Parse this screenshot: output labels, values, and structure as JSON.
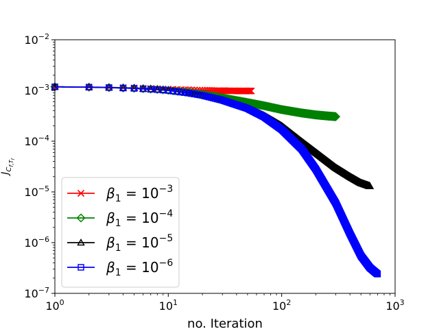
{
  "chart_data": {
    "type": "line",
    "title": "",
    "xlabel": "no. Iteration",
    "ylabel": "J C f,T f",
    "xscale": "log",
    "yscale": "log",
    "xlim": [
      1,
      1000
    ],
    "ylim": [
      1e-07,
      0.01
    ],
    "grid": false,
    "legend_position": "lower-left",
    "x_ticks": [
      {
        "base": "10",
        "exp": "0"
      },
      {
        "base": "10",
        "exp": "1"
      },
      {
        "base": "10",
        "exp": "2"
      },
      {
        "base": "10",
        "exp": "3"
      }
    ],
    "y_ticks": [
      {
        "base": "10",
        "exp": "−7"
      },
      {
        "base": "10",
        "exp": "−6"
      },
      {
        "base": "10",
        "exp": "−5"
      },
      {
        "base": "10",
        "exp": "−4"
      },
      {
        "base": "10",
        "exp": "−3"
      },
      {
        "base": "10",
        "exp": "−2"
      }
    ],
    "series": [
      {
        "name": "β1 = 10^−3",
        "legend_prefix": "β",
        "legend_sub": "1",
        "legend_mid": " = 10",
        "legend_exp": "−3",
        "color": "#ff0000",
        "marker": "x",
        "x": [
          1,
          2,
          3,
          5,
          8,
          10,
          15,
          20,
          30,
          40,
          54
        ],
        "y": [
          0.00118,
          0.00117,
          0.00115,
          0.00112,
          0.00108,
          0.00106,
          0.00103,
          0.00101,
          0.00099,
          0.00098,
          0.00098
        ]
      },
      {
        "name": "β1 = 10^−4",
        "legend_prefix": "β",
        "legend_sub": "1",
        "legend_mid": " = 10",
        "legend_exp": "−4",
        "color": "#008000",
        "marker": "diamond",
        "x": [
          1,
          2,
          3,
          5,
          8,
          10,
          15,
          20,
          30,
          50,
          70,
          100,
          150,
          200,
          250,
          300
        ],
        "y": [
          0.00118,
          0.00116,
          0.00114,
          0.00111,
          0.00105,
          0.00101,
          0.00092,
          0.00084,
          0.00072,
          0.00058,
          0.0005,
          0.00042,
          0.00036,
          0.00033,
          0.000315,
          0.000305
        ]
      },
      {
        "name": "β1 = 10^−5",
        "legend_prefix": "β",
        "legend_sub": "1",
        "legend_mid": " = 10",
        "legend_exp": "−5",
        "color": "#000000",
        "marker": "triangle",
        "x": [
          1,
          2,
          3,
          5,
          8,
          10,
          15,
          20,
          30,
          50,
          70,
          100,
          150,
          200,
          300,
          400,
          500,
          600
        ],
        "y": [
          0.00118,
          0.00116,
          0.00114,
          0.0011,
          0.00104,
          0.001,
          0.00089,
          0.0008,
          0.00065,
          0.00045,
          0.00032,
          0.0002,
          9.8e-05,
          6e-05,
          3e-05,
          2e-05,
          1.5e-05,
          1.3e-05
        ]
      },
      {
        "name": "β1 = 10^−6",
        "legend_prefix": "β",
        "legend_sub": "1",
        "legend_mid": " = 10",
        "legend_exp": "−6",
        "color": "#0000ff",
        "marker": "square",
        "x": [
          1,
          2,
          3,
          5,
          8,
          10,
          15,
          20,
          30,
          50,
          70,
          100,
          150,
          200,
          300,
          400,
          500,
          600,
          700
        ],
        "y": [
          0.00118,
          0.00116,
          0.00114,
          0.0011,
          0.00104,
          0.001,
          0.00089,
          0.0008,
          0.00064,
          0.00044,
          0.0003,
          0.00017,
          7e-05,
          2.8e-05,
          6e-06,
          1.5e-06,
          5.5e-07,
          3.2e-07,
          2.4e-07
        ]
      }
    ]
  }
}
